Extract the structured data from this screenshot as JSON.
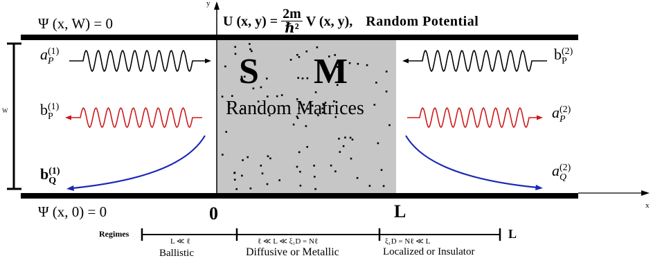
{
  "colors": {
    "wall": "#000000",
    "scatter": "#c6c6c6",
    "red_wave": "#cc1a1a",
    "blue_curve": "#1b27b8",
    "dot": "#000000"
  },
  "boundary": {
    "top": "Ψ (x, W) = 0",
    "bottom": "Ψ (x, 0) = 0"
  },
  "potential": {
    "lhs": "U (x, y) =",
    "num": "2m",
    "den": "ℏ²",
    "rhs": "V (x, y),",
    "label": "Random  Potential"
  },
  "axes": {
    "y": "y",
    "x": "x",
    "w": "W"
  },
  "region": {
    "letter_s": "S",
    "letter_m": "M",
    "caption": "Random  Matrices"
  },
  "left_labels": {
    "a_p": {
      "base": "a",
      "sub": "P",
      "sup": "(1)"
    },
    "b_p": {
      "base": "b",
      "sub": "P",
      "sup": "(1)"
    },
    "b_q": {
      "base": "b",
      "sub": "Q",
      "sup": "(1)"
    }
  },
  "right_labels": {
    "b_p": {
      "base": "b",
      "sub": "P",
      "sup": "(2)"
    },
    "a_p": {
      "base": "a",
      "sub": "P",
      "sup": "(2)"
    },
    "a_q": {
      "base": "a",
      "sub": "Q",
      "sup": "(2)"
    }
  },
  "positions": {
    "origin": "0",
    "length": "L"
  },
  "regimes": {
    "title": "Regimes",
    "end_label": "L",
    "items": [
      {
        "condition": "L ≪ ℓ",
        "name": "Ballistic"
      },
      {
        "condition": "ℓ ≪ L ≪ ξ₁D = Nℓ",
        "name": "Diffusive or Metallic"
      },
      {
        "condition": "ξ₁D = Nℓ ≪ L",
        "name": "Localized or Insulator"
      }
    ]
  }
}
